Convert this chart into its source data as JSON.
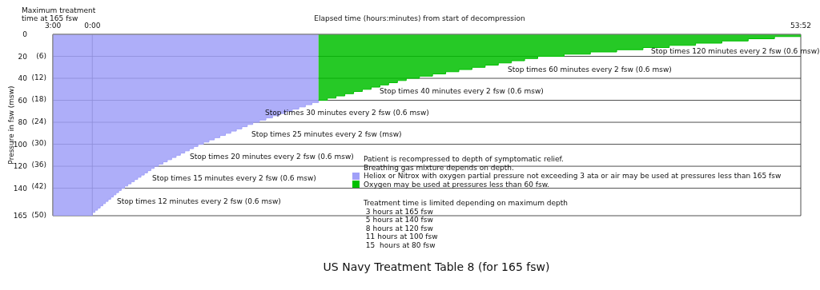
{
  "chart_data": {
    "type": "area",
    "title": "US Navy Treatment Table 8 (for 165 fsw)",
    "xlabel": "Elapsed time (hours:minutes) from start of decompression",
    "ylabel": "Pressure in fsw (msw)",
    "xlim": [
      -3,
      53.87
    ],
    "xticks": [
      {
        "value": -3,
        "label": "3:00"
      },
      {
        "value": 0,
        "label": "0:00"
      },
      {
        "value": 53.87,
        "label": "53:52"
      }
    ],
    "ylim": [
      165,
      0
    ],
    "yticks": [
      0,
      20,
      40,
      60,
      80,
      100,
      120,
      140,
      165
    ],
    "y2lim": [
      50.29,
      0
    ],
    "y2ticks": [
      {
        "value": 6,
        "label": "(6)"
      },
      {
        "value": 12,
        "label": "(12)"
      },
      {
        "value": 18,
        "label": "(18)"
      },
      {
        "value": 24,
        "label": "(24)"
      },
      {
        "value": 30,
        "label": "(30)"
      },
      {
        "value": 36,
        "label": "(36)"
      },
      {
        "value": 42,
        "label": "(42)"
      },
      {
        "value": 50,
        "label": "(50)"
      }
    ],
    "grid": true,
    "legend": "bottom",
    "series": [
      {
        "name": "Heliox or Nitrox with oxygen partial pressure not exceeding 3 ata or air may be used at pressures less than 165 fsw",
        "color": "#a0a0f8",
        "x": [
          -3,
          0,
          0.2,
          0.4,
          0.6,
          0.8,
          1.0,
          1.2,
          1.4,
          1.6,
          1.8,
          2.0,
          2.2,
          2.45,
          2.7,
          2.95,
          3.2,
          3.45,
          3.7,
          3.95,
          4.2,
          4.45,
          4.7,
          5.03,
          5.37,
          5.7,
          6.03,
          6.37,
          6.7,
          7.03,
          7.37,
          7.7,
          8.03,
          8.45,
          8.87,
          9.28,
          9.7,
          10.12,
          10.53,
          10.95,
          11.37,
          11.78,
          12.2,
          12.7,
          13.2,
          13.7,
          14.2,
          14.7,
          15.2,
          15.7,
          16.2,
          16.7,
          17.2
        ],
        "values": [
          165,
          162,
          160,
          158,
          156,
          154,
          152,
          150,
          148,
          146,
          144,
          142,
          140,
          138,
          136,
          134,
          132,
          130,
          128,
          126,
          124,
          122,
          120,
          118,
          116,
          114,
          112,
          110,
          108,
          106,
          104,
          102,
          100,
          98,
          96,
          94,
          92,
          90,
          88,
          86,
          84,
          82,
          80,
          78,
          76,
          74,
          72,
          70,
          68,
          66,
          64,
          62,
          60
        ]
      },
      {
        "name": "Oxygen may be used at pressures less than 60 fsw.",
        "color": "#00c000",
        "x": [
          17.2,
          17.87,
          18.53,
          19.2,
          19.87,
          20.53,
          21.2,
          21.87,
          22.53,
          23.2,
          23.87,
          24.87,
          25.87,
          26.87,
          27.87,
          28.87,
          29.87,
          30.87,
          31.87,
          32.87,
          33.87,
          35.87,
          37.87,
          39.87,
          41.87,
          43.87,
          45.87,
          47.87,
          49.87,
          51.87,
          53.87
        ],
        "values": [
          60,
          58,
          56,
          54,
          52,
          50,
          48,
          46,
          44,
          42,
          40,
          38,
          36,
          34,
          32,
          30,
          28,
          26,
          24,
          22,
          20,
          18,
          16,
          14,
          12,
          10,
          8,
          6,
          4,
          2,
          2
        ]
      }
    ],
    "annotations": [
      "Maximum treatment time at 165 fsw",
      "Patient is recompressed to depth of symptomatic relief.",
      "Breathing gas mixture depends on depth.",
      "Treatment time is limited depending on maximum depth",
      " 3 hours at 165 fsw",
      " 5 hours at 140 fsw",
      " 8 hours at 120 fsw",
      " 11 hours at 100 fsw",
      " 15  hours at 80 fsw",
      "Stop times 12 minutes every 2 fsw (0.6 msw)",
      "Stop times 15 minutes every 2 fsw (0.6 msw)",
      "Stop times 20 minutes every 2 fsw (0.6 msw)",
      "Stop times 25 minutes every 2 fsw (msw)",
      "Stop times 30 minutes every 2 fsw (0.6 msw)",
      "Stop times 40 minutes every 2 fsw (0.6 msw)",
      "Stop times 60 minutes every 2 fsw (0.6 msw)",
      "Stop times 120 minutes every 2 fsw (0.6 msw)"
    ]
  }
}
